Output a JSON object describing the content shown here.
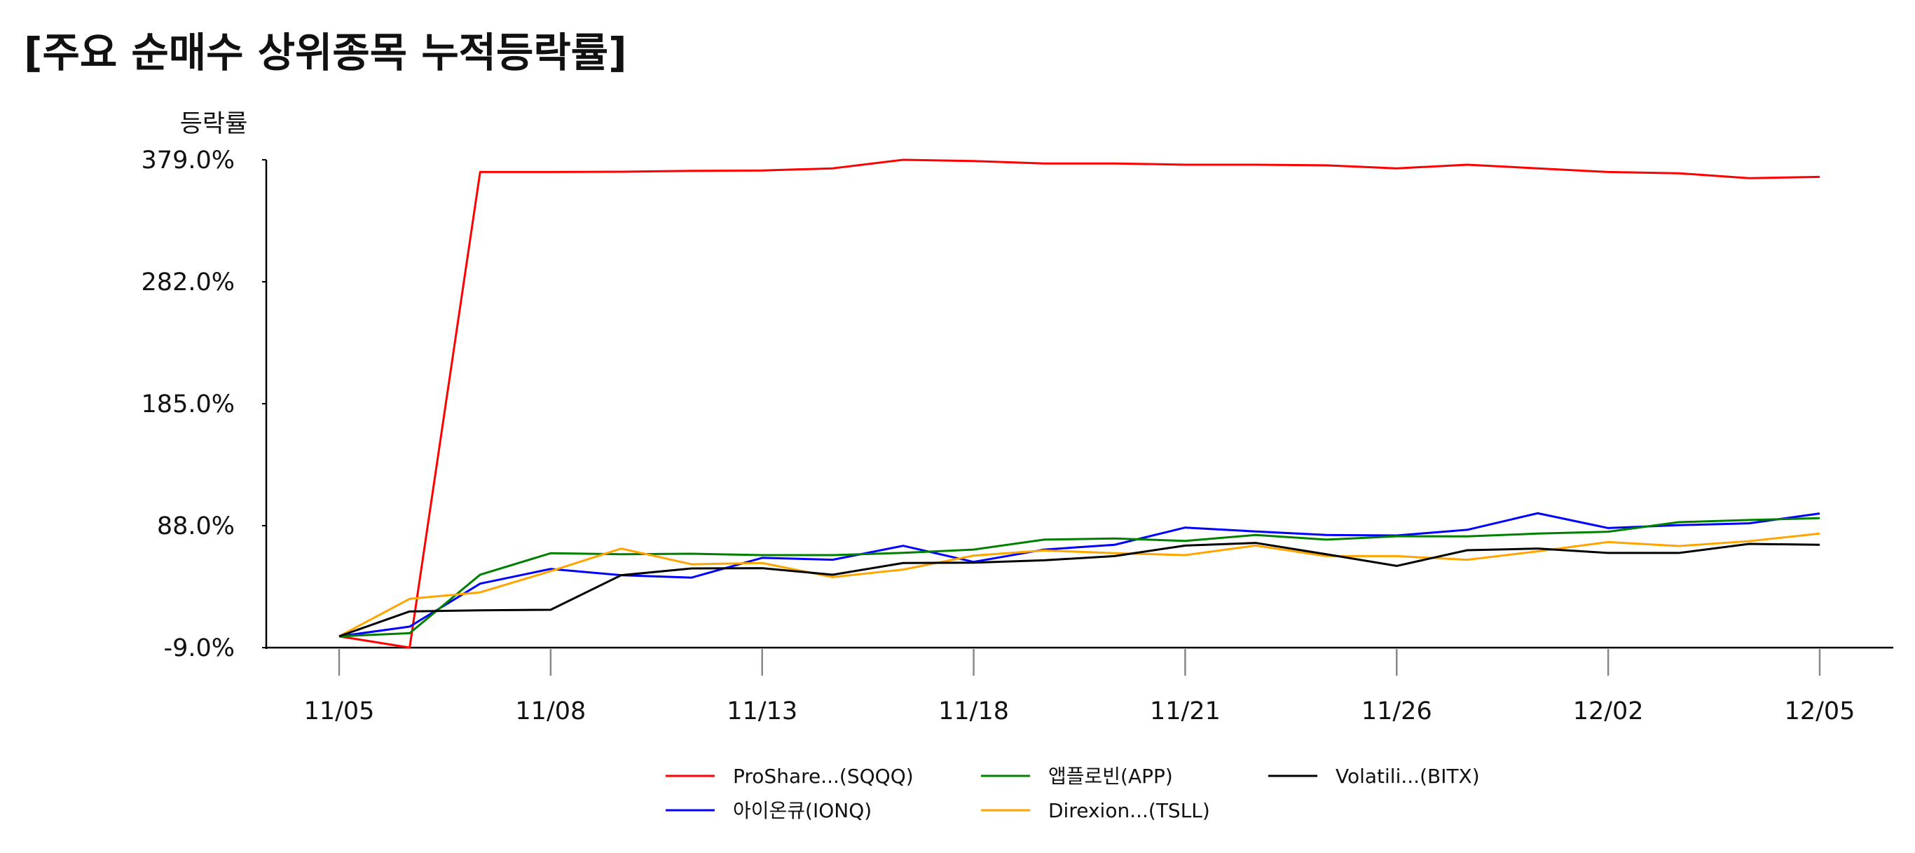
{
  "chart_data": {
    "type": "line",
    "title": "[주요 순매수 상위종목 누적등락률]",
    "ylabel": "등락률",
    "xlabel": "",
    "ylim": [
      -9.0,
      379.0
    ],
    "yticks": [
      "379.0%",
      "282.0%",
      "185.0%",
      "88.0%",
      "-9.0%"
    ],
    "ytick_values": [
      379.0,
      282.0,
      185.0,
      88.0,
      -9.0
    ],
    "x": [
      "11/05",
      "11/06",
      "11/07",
      "11/08",
      "11/11",
      "11/12",
      "11/13",
      "11/14",
      "11/15",
      "11/18",
      "11/19",
      "11/20",
      "11/21",
      "11/22",
      "11/25",
      "11/26",
      "11/27",
      "11/29",
      "12/02",
      "12/03",
      "12/04",
      "12/05"
    ],
    "xticks": [
      "11/05",
      "11/08",
      "11/13",
      "11/18",
      "11/21",
      "11/26",
      "12/02",
      "12/05"
    ],
    "grid": false,
    "legend_position": "bottom-center",
    "series": [
      {
        "name": "ProShare...(SQQQ)",
        "color": "#ff0000",
        "values": [
          0,
          -9.0,
          369.3,
          369.3,
          369.5,
          370.2,
          370.5,
          372.2,
          379.0,
          378.0,
          376.1,
          376.1,
          375.1,
          375.1,
          374.6,
          372.2,
          375.1,
          372.2,
          369.3,
          368.3,
          364.4,
          365.4
        ]
      },
      {
        "name": "아이온큐(IONQ)",
        "color": "#0000ff",
        "values": [
          0,
          7.7,
          41.9,
          53.6,
          48.6,
          46.7,
          62.4,
          60.9,
          72.0,
          59.2,
          69.0,
          72.8,
          86.5,
          83.4,
          80.6,
          80.2,
          84.7,
          97.9,
          86.1,
          88.4,
          89.9,
          97.7
        ]
      },
      {
        "name": "앱플로빈(APP)",
        "color": "#008000",
        "values": [
          0,
          2.5,
          49.0,
          66.1,
          65.3,
          65.7,
          64.6,
          64.6,
          66.4,
          69.0,
          76.9,
          77.8,
          75.9,
          80.6,
          76.9,
          79.6,
          79.5,
          81.7,
          83.2,
          90.8,
          92.5,
          94.0
        ]
      },
      {
        "name": "Direxion...(TSLL)",
        "color": "#ffa500",
        "values": [
          0,
          29.8,
          35.0,
          51.8,
          69.8,
          57.3,
          58.3,
          47.1,
          53.1,
          64.2,
          68.3,
          66.1,
          64.6,
          72.2,
          63.8,
          63.8,
          60.9,
          67.6,
          75.0,
          71.8,
          75.7,
          81.7
        ]
      },
      {
        "name": "Volatili...(BITX)",
        "color": "#000000",
        "values": [
          0,
          19.8,
          20.7,
          21.1,
          48.6,
          54.0,
          54.2,
          49.0,
          58.3,
          58.6,
          60.5,
          63.8,
          72.2,
          74.3,
          65.3,
          56.0,
          68.5,
          69.8,
          66.3,
          66.3,
          73.5,
          72.8
        ]
      }
    ]
  }
}
